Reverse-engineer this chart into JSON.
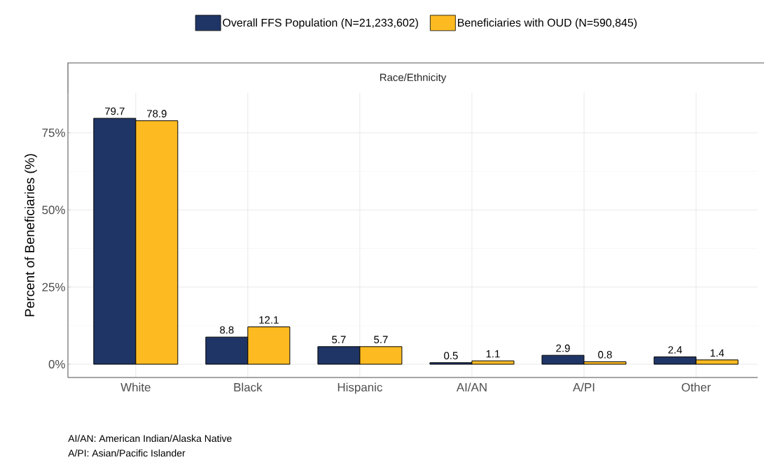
{
  "chart_data": {
    "type": "bar",
    "subtitle": "Race/Ethnicity",
    "ylabel": "Percent of Beneficiaries (%)",
    "categories": [
      "White",
      "Black",
      "Hispanic",
      "AI/AN",
      "A/PI",
      "Other"
    ],
    "series": [
      {
        "name": "Overall FFS Population (N=21,233,602)",
        "color": "#1f3566",
        "values": [
          79.7,
          8.8,
          5.7,
          0.5,
          2.9,
          2.4
        ]
      },
      {
        "name": "Beneficiaries with OUD (N=590,845)",
        "color": "#fdbb21",
        "values": [
          78.9,
          12.1,
          5.7,
          1.1,
          0.8,
          1.4
        ]
      }
    ],
    "ylim": [
      -4.3,
      87.9
    ],
    "yticks": [
      {
        "value": 0,
        "label": "0%"
      },
      {
        "value": 25,
        "label": "25%"
      },
      {
        "value": 50,
        "label": "50%"
      },
      {
        "value": 75,
        "label": "75%"
      }
    ],
    "grid": true,
    "legend": "top",
    "data_labels": true,
    "annotations": [
      "AI/AN: American Indian/Alaska Native",
      "A/PI: Asian/Pacific Islander"
    ]
  }
}
